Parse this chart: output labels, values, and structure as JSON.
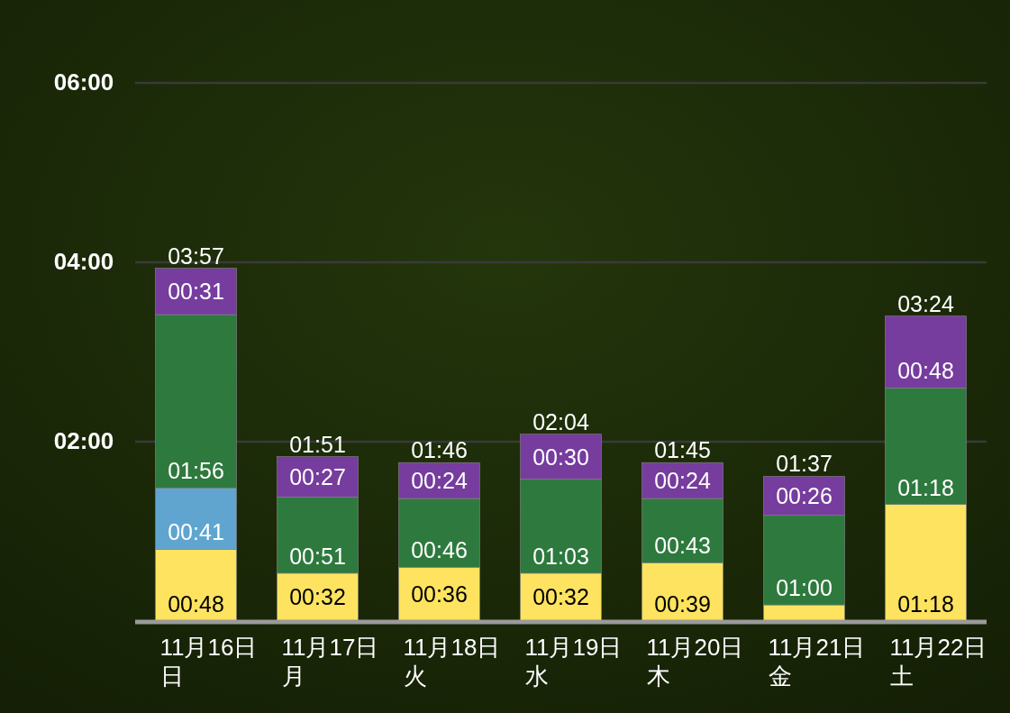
{
  "chart_data": {
    "type": "bar",
    "stacked": true,
    "grid": "y",
    "categories": [
      "11月16日日",
      "11月17日月",
      "11月18日火",
      "11月19日水",
      "11月20日木",
      "11月21日金",
      "11月22日土"
    ],
    "ylim": [
      0,
      6
    ],
    "yticks": [
      {
        "value": 2,
        "label": "02:00"
      },
      {
        "value": 4,
        "label": "04:00"
      },
      {
        "value": 6,
        "label": "06:00"
      }
    ],
    "series": [
      {
        "color": "#fde35f",
        "values": [
          0.8,
          0.5333,
          0.6,
          0.5333,
          0.65,
          0.18,
          1.3
        ],
        "value_labels": [
          "00:48",
          "00:32",
          "00:36",
          "00:32",
          "00:39",
          null,
          "01:18"
        ]
      },
      {
        "color": "#5fa5d0",
        "values": [
          0.6833,
          null,
          null,
          null,
          null,
          null,
          null
        ],
        "value_labels": [
          "00:41",
          null,
          null,
          null,
          null,
          null,
          null
        ]
      },
      {
        "color": "#2e7a3e",
        "values": [
          1.9333,
          0.85,
          0.7667,
          1.05,
          0.7167,
          1.0,
          1.3
        ],
        "value_labels": [
          "01:56",
          "00:51",
          "00:46",
          "01:03",
          "00:43",
          "01:00",
          "01:18"
        ]
      },
      {
        "color": "#763c9e",
        "values": [
          0.5167,
          0.45,
          0.4,
          0.5,
          0.4,
          0.4333,
          0.8
        ],
        "value_labels": [
          "00:31",
          "00:27",
          "00:24",
          "00:30",
          "00:24",
          "00:26",
          "00:48"
        ]
      }
    ],
    "totals": [
      "03:57",
      "01:51",
      "01:46",
      "02:04",
      "01:45",
      "01:37",
      "03:24"
    ]
  }
}
